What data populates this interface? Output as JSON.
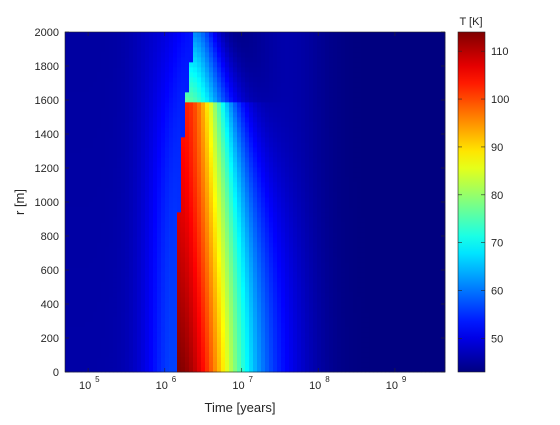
{
  "chart_data": {
    "type": "heatmap",
    "title": "",
    "xlabel": "Time [years]",
    "ylabel": "r [m]",
    "xscale": "log",
    "xlim": [
      50000,
      4500000000
    ],
    "ylim": [
      0,
      2000
    ],
    "x_ticks": [
      {
        "value": 100000,
        "base": "10",
        "exp": "5"
      },
      {
        "value": 1000000,
        "base": "10",
        "exp": "6"
      },
      {
        "value": 10000000,
        "base": "10",
        "exp": "7"
      },
      {
        "value": 100000000,
        "base": "10",
        "exp": "8"
      },
      {
        "value": 1000000000,
        "base": "10",
        "exp": "9"
      }
    ],
    "y_ticks": [
      0,
      200,
      400,
      600,
      800,
      1000,
      1200,
      1400,
      1600,
      1800,
      2000
    ],
    "colorbar": {
      "label": "T [K]",
      "range": [
        43,
        114
      ],
      "ticks": [
        50,
        60,
        70,
        80,
        90,
        100,
        110
      ],
      "colormap": "jet"
    },
    "field": {
      "background_K": 43,
      "peak_K": 114,
      "onset_log10_years": 6.16,
      "onset_top_log10_years": 6.28,
      "onset_top_r_m": 1600,
      "heated_r_max_m": 2000,
      "peak_log10_years": 6.4,
      "cooling_end_log10_years": 7.3
    },
    "grid": false,
    "colorbar_position": "right"
  }
}
